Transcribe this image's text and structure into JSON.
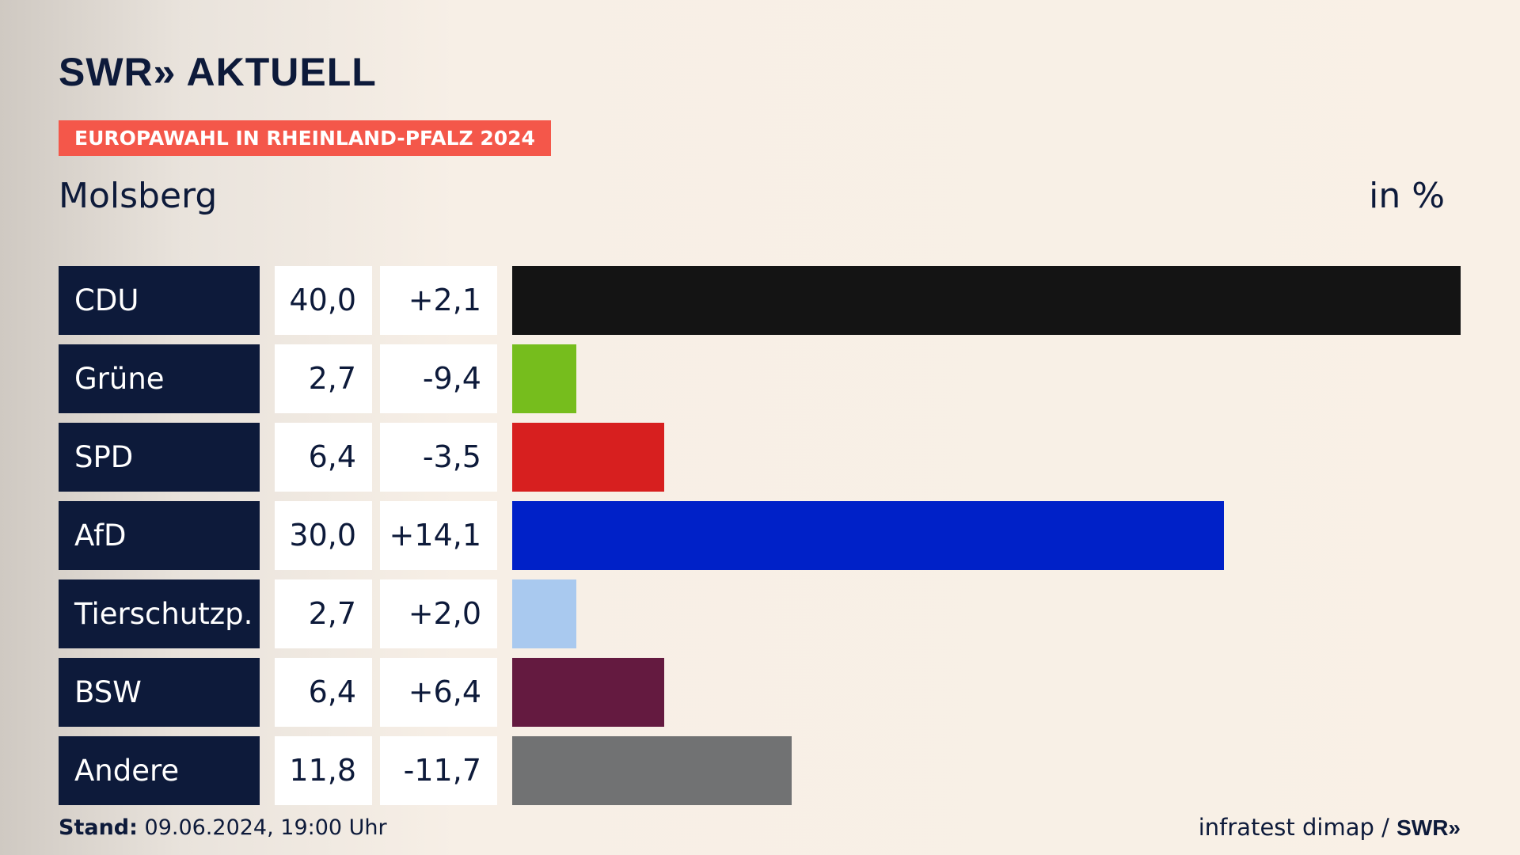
{
  "brand": {
    "logo": "SWR» AKTUELL"
  },
  "header": {
    "tag": "EUROPAWAHL IN RHEINLAND-PFALZ 2024",
    "place": "Molsberg",
    "unit": "in %"
  },
  "chart_data": {
    "type": "bar",
    "orientation": "horizontal",
    "title": "Molsberg",
    "unit": "in %",
    "xlim": [
      0,
      40
    ],
    "categories": [
      "CDU",
      "Grüne",
      "SPD",
      "AfD",
      "Tierschutzp.",
      "BSW",
      "Andere"
    ],
    "series": [
      {
        "name": "",
        "values": [
          40.0,
          2.7,
          6.4,
          30.0,
          2.7,
          6.4,
          11.8
        ]
      }
    ],
    "rows": [
      {
        "party": "CDU",
        "value": "40,0",
        "value_num": 40.0,
        "diff": "+2,1",
        "color": "#141414"
      },
      {
        "party": "Grüne",
        "value": "2,7",
        "value_num": 2.7,
        "diff": "-9,4",
        "color": "#76bd1d"
      },
      {
        "party": "SPD",
        "value": "6,4",
        "value_num": 6.4,
        "diff": "-3,5",
        "color": "#d71f1f"
      },
      {
        "party": "AfD",
        "value": "30,0",
        "value_num": 30.0,
        "diff": "+14,1",
        "color": "#0021c8"
      },
      {
        "party": "Tierschutzp.",
        "value": "2,7",
        "value_num": 2.7,
        "diff": "+2,0",
        "color": "#a9c9ef"
      },
      {
        "party": "BSW",
        "value": "6,4",
        "value_num": 6.4,
        "diff": "+6,4",
        "color": "#641a40"
      },
      {
        "party": "Andere",
        "value": "11,8",
        "value_num": 11.8,
        "diff": "-11,7",
        "color": "#717273"
      }
    ]
  },
  "footer": {
    "stand_label": "Stand:",
    "stand_value": "09.06.2024, 19:00 Uhr",
    "source": "infratest dimap /",
    "source_brand": "SWR»"
  }
}
